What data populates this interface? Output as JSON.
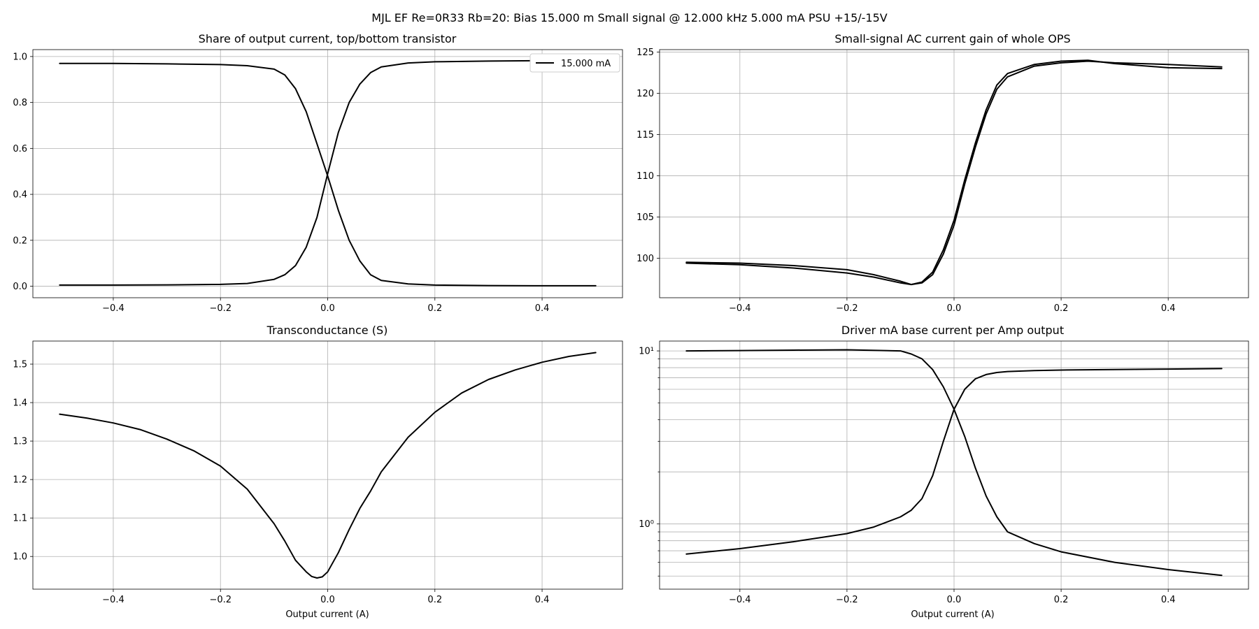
{
  "figure": {
    "suptitle": "MJL EF Re=0R33 Rb=20: Bias 15.000 m Small signal @ 12.000 kHz 5.000 mA PSU +15/-15V"
  },
  "chart_data": [
    {
      "id": "share",
      "type": "line",
      "title": "Share of output current, top/bottom transistor",
      "xlabel": "",
      "ylabel": "",
      "xlim": [
        -0.55,
        0.55
      ],
      "ylim": [
        -0.05,
        1.03
      ],
      "xticks": [
        -0.4,
        -0.2,
        0.0,
        0.2,
        0.4
      ],
      "xtick_labels": [
        "−0.4",
        "−0.2",
        "0.0",
        "0.2",
        "0.4"
      ],
      "yticks": [
        0.0,
        0.2,
        0.4,
        0.6,
        0.8,
        1.0
      ],
      "ytick_labels": [
        "0.0",
        "0.2",
        "0.4",
        "0.6",
        "0.8",
        "1.0"
      ],
      "grid": true,
      "legend": {
        "position": "top-right",
        "entries": [
          "15.000 mA"
        ]
      },
      "series": [
        {
          "name": "15.000 mA",
          "x": [
            -0.5,
            -0.4,
            -0.3,
            -0.2,
            -0.15,
            -0.1,
            -0.08,
            -0.06,
            -0.04,
            -0.02,
            0.0,
            0.02,
            0.04,
            0.06,
            0.08,
            0.1,
            0.15,
            0.2,
            0.3,
            0.4,
            0.5
          ],
          "y": [
            0.005,
            0.005,
            0.006,
            0.008,
            0.012,
            0.03,
            0.05,
            0.09,
            0.17,
            0.3,
            0.49,
            0.67,
            0.8,
            0.88,
            0.93,
            0.955,
            0.972,
            0.977,
            0.98,
            0.982,
            0.983
          ]
        },
        {
          "name": "",
          "x": [
            -0.5,
            -0.4,
            -0.3,
            -0.2,
            -0.15,
            -0.1,
            -0.08,
            -0.06,
            -0.04,
            -0.02,
            0.0,
            0.02,
            0.04,
            0.06,
            0.08,
            0.1,
            0.15,
            0.2,
            0.3,
            0.4,
            0.5
          ],
          "y": [
            0.97,
            0.97,
            0.968,
            0.965,
            0.96,
            0.945,
            0.92,
            0.86,
            0.76,
            0.62,
            0.48,
            0.33,
            0.2,
            0.11,
            0.05,
            0.025,
            0.01,
            0.005,
            0.003,
            0.002,
            0.002
          ]
        }
      ]
    },
    {
      "id": "gain",
      "type": "line",
      "title": "Small-signal AC current gain of whole OPS",
      "xlabel": "",
      "ylabel": "",
      "xlim": [
        -0.55,
        0.55
      ],
      "ylim": [
        95.2,
        125.3
      ],
      "xticks": [
        -0.4,
        -0.2,
        0.0,
        0.2,
        0.4
      ],
      "xtick_labels": [
        "−0.4",
        "−0.2",
        "0.0",
        "0.2",
        "0.4"
      ],
      "yticks": [
        100,
        105,
        110,
        115,
        120,
        125
      ],
      "ytick_labels": [
        "100",
        "105",
        "110",
        "115",
        "120",
        "125"
      ],
      "grid": true,
      "series": [
        {
          "name": "",
          "x": [
            -0.5,
            -0.4,
            -0.3,
            -0.2,
            -0.15,
            -0.1,
            -0.08,
            -0.06,
            -0.04,
            -0.02,
            0.0,
            0.02,
            0.04,
            0.06,
            0.08,
            0.1,
            0.15,
            0.2,
            0.25,
            0.3,
            0.4,
            0.5
          ],
          "y": [
            99.5,
            99.4,
            99.1,
            98.6,
            98.0,
            97.2,
            96.8,
            97.0,
            98.0,
            100.5,
            104.0,
            109.0,
            113.5,
            117.5,
            120.5,
            122.0,
            123.3,
            123.7,
            123.9,
            123.7,
            123.5,
            123.2
          ]
        },
        {
          "name": "",
          "x": [
            -0.5,
            -0.4,
            -0.3,
            -0.2,
            -0.15,
            -0.1,
            -0.08,
            -0.06,
            -0.04,
            -0.02,
            0.0,
            0.02,
            0.04,
            0.06,
            0.08,
            0.1,
            0.15,
            0.2,
            0.25,
            0.3,
            0.4,
            0.5
          ],
          "y": [
            99.4,
            99.2,
            98.8,
            98.2,
            97.7,
            97.0,
            96.8,
            97.1,
            98.3,
            101.0,
            104.6,
            109.5,
            114.0,
            118.0,
            121.0,
            122.4,
            123.5,
            123.9,
            124.0,
            123.6,
            123.1,
            123.0
          ]
        }
      ]
    },
    {
      "id": "gm",
      "type": "line",
      "title": "Transconductance (S)",
      "xlabel": "Output current (A)",
      "ylabel": "",
      "xlim": [
        -0.55,
        0.55
      ],
      "ylim": [
        0.915,
        1.56
      ],
      "xticks": [
        -0.4,
        -0.2,
        0.0,
        0.2,
        0.4
      ],
      "xtick_labels": [
        "−0.4",
        "−0.2",
        "0.0",
        "0.2",
        "0.4"
      ],
      "yticks": [
        1.0,
        1.1,
        1.2,
        1.3,
        1.4,
        1.5
      ],
      "ytick_labels": [
        "1.0",
        "1.1",
        "1.2",
        "1.3",
        "1.4",
        "1.5"
      ],
      "grid": true,
      "series": [
        {
          "name": "",
          "x": [
            -0.5,
            -0.45,
            -0.4,
            -0.35,
            -0.3,
            -0.25,
            -0.2,
            -0.15,
            -0.1,
            -0.08,
            -0.06,
            -0.04,
            -0.03,
            -0.02,
            -0.01,
            0.0,
            0.02,
            0.04,
            0.06,
            0.08,
            0.1,
            0.15,
            0.2,
            0.25,
            0.3,
            0.35,
            0.4,
            0.45,
            0.5
          ],
          "y": [
            1.37,
            1.36,
            1.347,
            1.33,
            1.305,
            1.275,
            1.235,
            1.175,
            1.085,
            1.04,
            0.99,
            0.96,
            0.948,
            0.944,
            0.947,
            0.96,
            1.01,
            1.07,
            1.125,
            1.17,
            1.22,
            1.31,
            1.375,
            1.425,
            1.46,
            1.485,
            1.505,
            1.52,
            1.53
          ]
        }
      ]
    },
    {
      "id": "drive",
      "type": "line",
      "title": "Driver mA base current per Amp output",
      "xlabel": "Output current (A)",
      "ylabel": "",
      "log_scale_y": true,
      "xlim": [
        -0.55,
        0.55
      ],
      "ylim": [
        0.42,
        11.4
      ],
      "xticks": [
        -0.4,
        -0.2,
        0.0,
        0.2,
        0.4
      ],
      "xtick_labels": [
        "−0.4",
        "−0.2",
        "0.0",
        "0.2",
        "0.4"
      ],
      "yticks": [
        1,
        10
      ],
      "ytick_labels": [
        "10⁰",
        "10¹"
      ],
      "minor_yticks": [
        0.5,
        0.6,
        0.7,
        0.8,
        0.9,
        2,
        3,
        4,
        5,
        6,
        7,
        8,
        9
      ],
      "grid": true,
      "series": [
        {
          "name": "",
          "x": [
            -0.5,
            -0.4,
            -0.3,
            -0.2,
            -0.1,
            -0.08,
            -0.06,
            -0.04,
            -0.02,
            0.0,
            0.02,
            0.04,
            0.06,
            0.08,
            0.1,
            0.15,
            0.2,
            0.3,
            0.4,
            0.5
          ],
          "y": [
            10.0,
            10.05,
            10.1,
            10.15,
            10.0,
            9.6,
            9.0,
            7.8,
            6.2,
            4.6,
            3.2,
            2.1,
            1.45,
            1.1,
            0.9,
            0.77,
            0.69,
            0.6,
            0.545,
            0.505
          ]
        },
        {
          "name": "",
          "x": [
            -0.5,
            -0.4,
            -0.3,
            -0.2,
            -0.15,
            -0.1,
            -0.08,
            -0.06,
            -0.04,
            -0.02,
            0.0,
            0.02,
            0.04,
            0.06,
            0.08,
            0.1,
            0.15,
            0.2,
            0.3,
            0.4,
            0.5
          ],
          "y": [
            0.67,
            0.72,
            0.79,
            0.88,
            0.96,
            1.1,
            1.2,
            1.4,
            1.9,
            3.0,
            4.6,
            6.0,
            6.9,
            7.3,
            7.5,
            7.6,
            7.7,
            7.75,
            7.8,
            7.85,
            7.9
          ]
        }
      ]
    }
  ]
}
